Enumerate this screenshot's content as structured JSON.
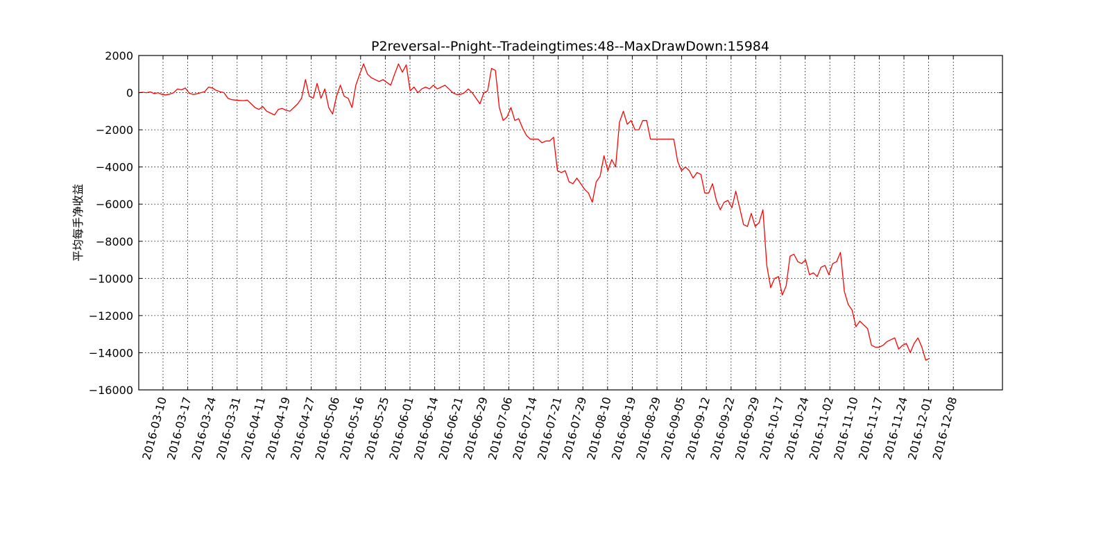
{
  "chart_data": {
    "type": "line",
    "title": "P2reversal--Pnight--Tradeingtimes:48--MaxDrawDown:15984",
    "xlabel": "",
    "ylabel": "平均每手净收益",
    "ylim": [
      -16000,
      2000
    ],
    "yticks": [
      2000,
      0,
      -2000,
      -4000,
      -6000,
      -8000,
      -10000,
      -12000,
      -14000,
      -16000
    ],
    "ytick_labels": [
      "2000",
      "0",
      "−2000",
      "−4000",
      "−6000",
      "−8000",
      "−10000",
      "−12000",
      "−14000",
      "−16000"
    ],
    "xlim": [
      "2016-03-10",
      "2016-12-31"
    ],
    "xtick_labels": [
      "2016-03-10",
      "2016-03-17",
      "2016-03-24",
      "2016-03-31",
      "2016-04-11",
      "2016-04-19",
      "2016-04-27",
      "2016-05-06",
      "2016-05-16",
      "2016-05-25",
      "2016-06-01",
      "2016-06-14",
      "2016-06-21",
      "2016-06-29",
      "2016-07-06",
      "2016-07-14",
      "2016-07-21",
      "2016-07-29",
      "2016-08-10",
      "2016-08-19",
      "2016-08-29",
      "2016-09-05",
      "2016-09-12",
      "2016-09-22",
      "2016-09-29",
      "2016-10-17",
      "2016-10-24",
      "2016-11-02",
      "2016-11-10",
      "2016-11-17",
      "2016-11-24",
      "2016-12-01",
      "2016-12-08"
    ],
    "grid": true,
    "legend": "none",
    "colors": {
      "line": "#ff0000",
      "axes": "#000000",
      "grid": "#000000"
    },
    "series": [
      {
        "values": [
          0,
          20,
          0,
          40,
          -50,
          0,
          -100,
          -120,
          -80,
          0,
          200,
          150,
          250,
          -20,
          -100,
          -60,
          0,
          50,
          300,
          250,
          120,
          50,
          0,
          -300,
          -380,
          -400,
          -420,
          -430,
          -400,
          -600,
          -800,
          -900,
          -750,
          -1000,
          -1100,
          -1200,
          -900,
          -850,
          -950,
          -1000,
          -800,
          -600,
          -300,
          700,
          -200,
          -300,
          500,
          -300,
          200,
          -800,
          -1150,
          -200,
          400,
          -200,
          -300,
          -800,
          400,
          1000,
          1550,
          1000,
          800,
          700,
          600,
          700,
          550,
          400,
          1000,
          1550,
          1100,
          1500,
          100,
          300,
          0,
          200,
          300,
          200,
          400,
          200,
          300,
          400,
          200,
          0,
          -100,
          -100,
          0,
          200,
          0,
          -300,
          -600,
          0,
          100,
          1300,
          1200,
          -800,
          -1500,
          -1300,
          -800,
          -1500,
          -1400,
          -1900,
          -2300,
          -2500,
          -2500,
          -2500,
          -2700,
          -2600,
          -2600,
          -2400,
          -4200,
          -4300,
          -4200,
          -4800,
          -4900,
          -4600,
          -4900,
          -5200,
          -5400,
          -5900,
          -4800,
          -4500,
          -3400,
          -4200,
          -3600,
          -4000,
          -1600,
          -1000,
          -1700,
          -1500,
          -2000,
          -2000,
          -1500,
          -1500,
          -2500,
          -2500,
          -2500,
          -2500,
          -2500,
          -2500,
          -2500,
          -3700,
          -4200,
          -4000,
          -4200,
          -4600,
          -4300,
          -4400,
          -5400,
          -5400,
          -4900,
          -5800,
          -6300,
          -5900,
          -5800,
          -6200,
          -5300,
          -6200,
          -7100,
          -7200,
          -6500,
          -7200,
          -7000,
          -6300,
          -9300,
          -10500,
          -10000,
          -9900,
          -10900,
          -10400,
          -8800,
          -8700,
          -9100,
          -9200,
          -9000,
          -9800,
          -9700,
          -9900,
          -9400,
          -9300,
          -9800,
          -9200,
          -9100,
          -8600,
          -10700,
          -11400,
          -11700,
          -12600,
          -12300,
          -12500,
          -12700,
          -13600,
          -13700,
          -13700,
          -13600,
          -13400,
          -13300,
          -13200,
          -13800,
          -13600,
          -13500,
          -14000,
          -13500,
          -13200,
          -13700,
          -14400,
          -14300
        ]
      }
    ]
  }
}
